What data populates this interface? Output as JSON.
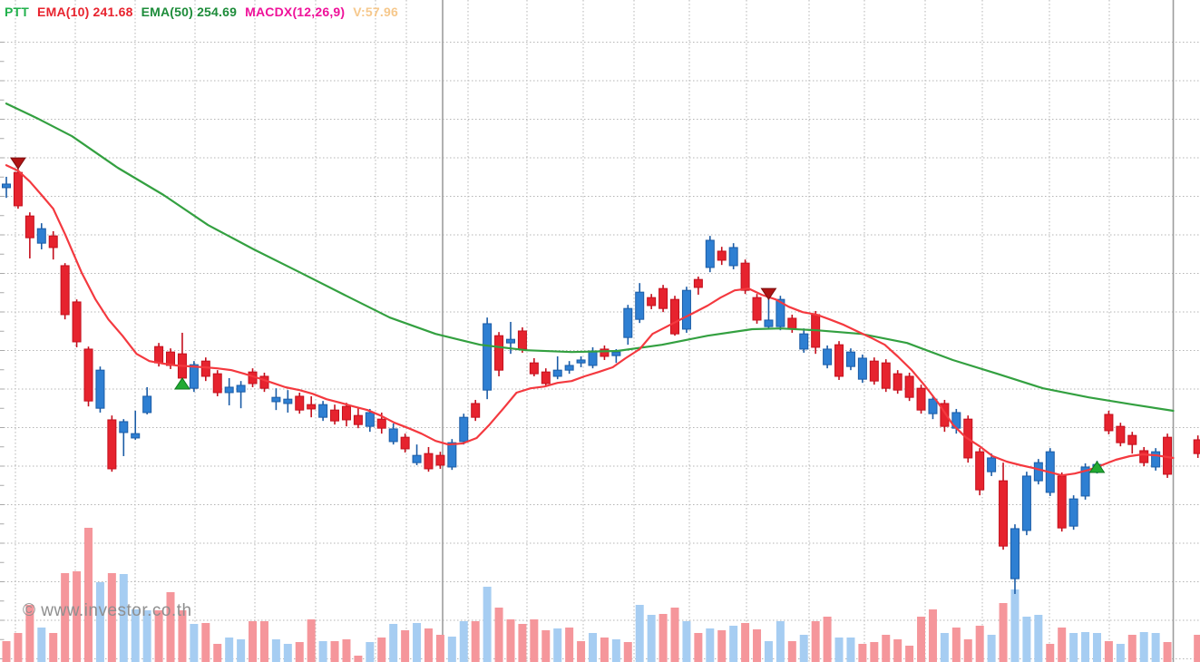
{
  "legend": {
    "items": [
      {
        "id": "symbol",
        "label": "PTT",
        "color": "#21b14c"
      },
      {
        "id": "ema10",
        "label": "EMA(10) 241.68",
        "color": "#e8232e"
      },
      {
        "id": "ema50",
        "label": "EMA(50) 254.69",
        "color": "#1d8c3a"
      },
      {
        "id": "macdx",
        "label": "MACDX(12,26,9)",
        "color": "#ef129a"
      },
      {
        "id": "volume",
        "label": "V:57.96",
        "color": "#f6c88c"
      }
    ]
  },
  "watermark": "© www.investor.co.th",
  "chart_data": {
    "type": "candlestick",
    "symbol": "PTT",
    "indicators": [
      {
        "name": "EMA(10)",
        "value": 241.68
      },
      {
        "name": "EMA(50)",
        "value": 254.69
      },
      {
        "name": "MACDX",
        "params": "12,26,9"
      },
      {
        "name": "V",
        "value": 57.96
      }
    ],
    "price_axis": {
      "top_estimate": 367.9,
      "bottom_estimate": 185.4,
      "units_per_grid": 10.6
    },
    "legend_note": "candles = [dir, open, high, low, close, volume_rel, vol_dir]; dir r=down b=up",
    "candles": [
      [
        "b",
        316.2,
        319.2,
        313.4,
        317.2,
        23,
        "r"
      ],
      [
        "r",
        320.4,
        321.4,
        310.4,
        311.2,
        32,
        "r"
      ],
      [
        "r",
        308.4,
        309.4,
        296.7,
        302.4,
        63,
        "r"
      ],
      [
        "b",
        300.9,
        306.4,
        299.2,
        304.9,
        38,
        "b"
      ],
      [
        "r",
        302.9,
        304.2,
        296.4,
        299.7,
        32,
        "r"
      ],
      [
        "r",
        294.7,
        295.4,
        279.9,
        281.2,
        98,
        "r"
      ],
      [
        "r",
        284.7,
        285.4,
        272.2,
        273.7,
        100,
        "r"
      ],
      [
        "r",
        271.7,
        272.4,
        255.9,
        257.4,
        148,
        "r"
      ],
      [
        "b",
        255.4,
        266.9,
        254.2,
        265.9,
        88,
        "b"
      ],
      [
        "r",
        252.2,
        253.4,
        237.9,
        238.7,
        98,
        "r"
      ],
      [
        "b",
        248.7,
        252.4,
        242.2,
        251.7,
        97,
        "b"
      ],
      [
        "b",
        247.2,
        254.7,
        246.7,
        248.4,
        58,
        "b"
      ],
      [
        "b",
        254.2,
        261.2,
        253.7,
        258.7,
        57,
        "b"
      ],
      [
        "r",
        272.4,
        273.4,
        266.9,
        267.9,
        57,
        "r"
      ],
      [
        "r",
        270.9,
        271.9,
        266.2,
        267.2,
        77,
        "r"
      ],
      [
        "r",
        270.4,
        276.2,
        262.9,
        263.7,
        57,
        "r"
      ],
      [
        "b",
        260.9,
        268.4,
        259.9,
        267.4,
        42,
        "b"
      ],
      [
        "r",
        268.4,
        269.4,
        262.9,
        264.2,
        43,
        "r"
      ],
      [
        "r",
        264.9,
        265.9,
        258.7,
        259.7,
        20,
        "r"
      ],
      [
        "b",
        259.7,
        263.7,
        256.2,
        261.2,
        27,
        "b"
      ],
      [
        "b",
        259.9,
        262.9,
        255.4,
        261.7,
        25,
        "b"
      ],
      [
        "r",
        265.4,
        266.4,
        261.2,
        262.2,
        45,
        "r"
      ],
      [
        "r",
        264.2,
        265.2,
        259.9,
        260.9,
        45,
        "r"
      ],
      [
        "b",
        257.2,
        260.9,
        254.9,
        258.4,
        25,
        "b"
      ],
      [
        "b",
        256.7,
        260.4,
        254.2,
        257.9,
        20,
        "b"
      ],
      [
        "r",
        258.7,
        259.7,
        253.9,
        254.9,
        22,
        "r"
      ],
      [
        "r",
        256.4,
        258.7,
        252.9,
        255.2,
        47,
        "r"
      ],
      [
        "b",
        252.9,
        257.4,
        251.9,
        256.4,
        23,
        "b"
      ],
      [
        "r",
        254.9,
        256.4,
        250.9,
        251.9,
        23,
        "r"
      ],
      [
        "r",
        255.9,
        256.9,
        250.4,
        252.2,
        25,
        "r"
      ],
      [
        "r",
        253.4,
        255.4,
        249.9,
        250.9,
        7,
        "r"
      ],
      [
        "b",
        250.4,
        255.2,
        248.9,
        254.2,
        22,
        "b"
      ],
      [
        "r",
        252.4,
        254.2,
        248.4,
        249.9,
        27,
        "r"
      ],
      [
        "b",
        246.2,
        251.2,
        245.4,
        249.7,
        42,
        "b"
      ],
      [
        "r",
        247.4,
        248.4,
        243.2,
        244.2,
        35,
        "r"
      ],
      [
        "b",
        240.4,
        245.4,
        239.7,
        242.4,
        43,
        "b"
      ],
      [
        "r",
        242.9,
        244.7,
        237.9,
        238.7,
        37,
        "r"
      ],
      [
        "r",
        242.4,
        243.4,
        238.7,
        239.7,
        30,
        "r"
      ],
      [
        "b",
        239.2,
        246.9,
        238.4,
        245.9,
        28,
        "b"
      ],
      [
        "b",
        246.2,
        253.9,
        245.4,
        252.9,
        45,
        "b"
      ],
      [
        "r",
        256.7,
        257.7,
        251.9,
        252.9,
        45,
        "r"
      ],
      [
        "b",
        260.4,
        280.4,
        257.9,
        278.7,
        83,
        "b"
      ],
      [
        "r",
        275.4,
        276.4,
        264.2,
        265.9,
        60,
        "r"
      ],
      [
        "b",
        273.4,
        279.2,
        270.4,
        274.4,
        47,
        "r"
      ],
      [
        "r",
        276.7,
        277.7,
        270.7,
        271.7,
        42,
        "r"
      ],
      [
        "r",
        267.9,
        269.2,
        264.2,
        264.9,
        47,
        "r"
      ],
      [
        "r",
        265.4,
        266.4,
        261.4,
        262.2,
        35,
        "r"
      ],
      [
        "b",
        264.2,
        269.7,
        263.4,
        265.9,
        37,
        "b"
      ],
      [
        "b",
        265.9,
        268.4,
        264.9,
        267.2,
        38,
        "r"
      ],
      [
        "b",
        267.9,
        269.7,
        266.7,
        268.7,
        23,
        "r"
      ],
      [
        "b",
        267.2,
        272.2,
        266.4,
        271.2,
        32,
        "b"
      ],
      [
        "r",
        271.7,
        272.7,
        268.7,
        269.7,
        27,
        "r"
      ],
      [
        "b",
        269.9,
        271.7,
        267.9,
        270.9,
        25,
        "b"
      ],
      [
        "b",
        274.9,
        283.9,
        272.9,
        282.9,
        22,
        "r"
      ],
      [
        "b",
        279.9,
        289.9,
        278.9,
        287.4,
        63,
        "b"
      ],
      [
        "r",
        285.9,
        286.9,
        282.7,
        283.7,
        52,
        "b"
      ],
      [
        "r",
        288.4,
        289.4,
        281.9,
        282.9,
        53,
        "r"
      ],
      [
        "r",
        285.4,
        286.4,
        275.4,
        275.9,
        60,
        "r"
      ],
      [
        "b",
        277.2,
        288.9,
        276.2,
        287.9,
        45,
        "b"
      ],
      [
        "r",
        290.9,
        291.7,
        286.7,
        288.7,
        32,
        "r"
      ],
      [
        "b",
        294.2,
        302.9,
        292.9,
        301.7,
        37,
        "b"
      ],
      [
        "r",
        298.7,
        299.9,
        294.9,
        296.2,
        35,
        "r"
      ],
      [
        "b",
        294.7,
        300.9,
        293.7,
        299.7,
        40,
        "b"
      ],
      [
        "r",
        295.4,
        296.4,
        286.9,
        287.9,
        43,
        "r"
      ],
      [
        "r",
        285.9,
        286.9,
        278.7,
        279.7,
        36,
        "r"
      ],
      [
        "b",
        277.9,
        286.7,
        277.2,
        279.7,
        23,
        "b"
      ],
      [
        "b",
        277.9,
        286.4,
        276.9,
        285.4,
        45,
        "b"
      ],
      [
        "r",
        280.2,
        281.2,
        276.2,
        277.2,
        23,
        "r"
      ],
      [
        "b",
        271.7,
        277.4,
        270.7,
        275.9,
        30,
        "b"
      ],
      [
        "r",
        281.2,
        282.2,
        270.4,
        272.2,
        45,
        "r"
      ],
      [
        "b",
        267.4,
        272.7,
        266.4,
        271.7,
        50,
        "r"
      ],
      [
        "r",
        272.9,
        273.9,
        263.2,
        264.2,
        27,
        "b"
      ],
      [
        "b",
        266.9,
        271.9,
        265.9,
        270.9,
        27,
        "b"
      ],
      [
        "b",
        263.4,
        270.2,
        262.4,
        269.2,
        20,
        "r"
      ],
      [
        "r",
        268.4,
        269.4,
        261.9,
        262.9,
        22,
        "r"
      ],
      [
        "r",
        267.9,
        268.9,
        259.9,
        260.9,
        30,
        "r"
      ],
      [
        "r",
        264.9,
        265.9,
        259.4,
        260.4,
        25,
        "r"
      ],
      [
        "r",
        264.2,
        265.2,
        257.4,
        258.4,
        18,
        "r"
      ],
      [
        "r",
        260.9,
        261.9,
        253.9,
        254.9,
        50,
        "r"
      ],
      [
        "b",
        253.9,
        258.9,
        252.4,
        257.9,
        58,
        "r"
      ],
      [
        "r",
        256.7,
        257.7,
        248.9,
        250.4,
        32,
        "b"
      ],
      [
        "b",
        249.9,
        255.2,
        248.4,
        254.2,
        38,
        "r"
      ],
      [
        "r",
        252.4,
        253.4,
        240.4,
        241.7,
        25,
        "r"
      ],
      [
        "r",
        243.4,
        244.4,
        231.4,
        232.9,
        40,
        "r"
      ],
      [
        "b",
        237.9,
        242.9,
        236.7,
        241.7,
        30,
        "b"
      ],
      [
        "r",
        235.4,
        240.4,
        216.4,
        217.4,
        65,
        "r"
      ],
      [
        "b",
        208.4,
        223.4,
        204.2,
        222.2,
        80,
        "b"
      ],
      [
        "b",
        221.7,
        237.9,
        220.4,
        236.7,
        50,
        "b"
      ],
      [
        "b",
        235.4,
        241.4,
        234.4,
        240.4,
        52,
        "b"
      ],
      [
        "b",
        232.2,
        244.4,
        231.2,
        243.4,
        20,
        "r"
      ],
      [
        "r",
        236.7,
        237.7,
        221.4,
        222.4,
        38,
        "r"
      ],
      [
        "b",
        222.9,
        231.4,
        221.9,
        230.4,
        32,
        "b"
      ],
      [
        "b",
        231.2,
        240.2,
        230.2,
        239.2,
        33,
        "b"
      ],
      [
        "b",
        238.4,
        240.9,
        237.4,
        239.9,
        32,
        "b"
      ],
      [
        "r",
        253.7,
        254.7,
        248.2,
        249.2,
        23,
        "r"
      ],
      [
        "r",
        250.4,
        251.4,
        244.9,
        245.9,
        20,
        "b"
      ],
      [
        "r",
        247.9,
        248.9,
        242.9,
        245.4,
        30,
        "r"
      ],
      [
        "r",
        243.7,
        244.7,
        239.4,
        240.4,
        33,
        "b"
      ],
      [
        "b",
        239.2,
        244.4,
        238.2,
        243.4,
        32,
        "b"
      ],
      [
        "r",
        247.4,
        248.4,
        236.2,
        237.2,
        22,
        "r"
      ]
    ],
    "edge_candle": {
      "index": 101.6,
      "values": [
        "r",
        246.7,
        247.9,
        241.7,
        242.9,
        30,
        "r"
      ]
    },
    "ema10": [
      [
        0,
        322.4
      ],
      [
        1,
        320.9
      ],
      [
        2,
        317.9
      ],
      [
        3,
        314.2
      ],
      [
        4,
        310.4
      ],
      [
        5,
        303.4
      ],
      [
        6.4,
        292.9
      ],
      [
        7.6,
        285.4
      ],
      [
        8.7,
        279.9
      ],
      [
        9.9,
        275.4
      ],
      [
        11.1,
        270.4
      ],
      [
        12.2,
        268.4
      ],
      [
        13.4,
        267.7
      ],
      [
        14.5,
        267.2
      ],
      [
        16.9,
        266.7
      ],
      [
        18,
        266.4
      ],
      [
        19.2,
        265.9
      ],
      [
        20.3,
        264.9
      ],
      [
        21.5,
        263.7
      ],
      [
        22.7,
        262.4
      ],
      [
        23.8,
        261.2
      ],
      [
        25,
        260.4
      ],
      [
        26.1,
        259.4
      ],
      [
        27.3,
        257.9
      ],
      [
        28.5,
        256.9
      ],
      [
        29.6,
        255.9
      ],
      [
        30.8,
        254.9
      ],
      [
        31.9,
        253.4
      ],
      [
        33.1,
        251.4
      ],
      [
        34.3,
        249.9
      ],
      [
        35.4,
        248.4
      ],
      [
        36.6,
        246.4
      ],
      [
        37.7,
        245.4
      ],
      [
        38.9,
        245.7
      ],
      [
        40.1,
        247.2
      ],
      [
        41.2,
        250.9
      ],
      [
        42.4,
        255.4
      ],
      [
        43.5,
        259.7
      ],
      [
        44.7,
        260.9
      ],
      [
        45.9,
        261.4
      ],
      [
        47,
        262.4
      ],
      [
        48.2,
        262.9
      ],
      [
        49.3,
        264.2
      ],
      [
        50.5,
        265.4
      ],
      [
        51.7,
        266.7
      ],
      [
        52.8,
        269.2
      ],
      [
        54,
        271.7
      ],
      [
        55.1,
        275.9
      ],
      [
        56.3,
        277.9
      ],
      [
        57.5,
        279.9
      ],
      [
        58.6,
        281.7
      ],
      [
        59.8,
        283.7
      ],
      [
        60.9,
        285.9
      ],
      [
        62.1,
        287.9
      ],
      [
        63.3,
        288.4
      ],
      [
        64.4,
        286.7
      ],
      [
        65.6,
        285.4
      ],
      [
        66.7,
        283.4
      ],
      [
        67.9,
        281.9
      ],
      [
        69.1,
        281.2
      ],
      [
        70.2,
        279.9
      ],
      [
        71.4,
        278.4
      ],
      [
        72.5,
        276.7
      ],
      [
        73.7,
        274.9
      ],
      [
        74.9,
        272.9
      ],
      [
        76,
        269.7
      ],
      [
        77.2,
        265.9
      ],
      [
        78.3,
        261.7
      ],
      [
        79.5,
        256.7
      ],
      [
        80.7,
        250.9
      ],
      [
        81.8,
        247.4
      ],
      [
        83,
        244.9
      ],
      [
        84.1,
        242.2
      ],
      [
        85.3,
        240.7
      ],
      [
        86.5,
        239.7
      ],
      [
        87.6,
        238.9
      ],
      [
        88.8,
        237.9
      ],
      [
        90,
        236.9
      ],
      [
        91.1,
        237.4
      ],
      [
        92.3,
        238.4
      ],
      [
        93.4,
        239.7
      ],
      [
        94.6,
        241.2
      ],
      [
        95.8,
        242.2
      ],
      [
        96.9,
        242.7
      ],
      [
        98.1,
        242.4
      ],
      [
        99.5,
        241.7
      ]
    ],
    "ema50": [
      [
        0,
        339.4
      ],
      [
        2.6,
        335.4
      ],
      [
        5.6,
        330.4
      ],
      [
        9.5,
        321.7
      ],
      [
        13.4,
        314.2
      ],
      [
        17.2,
        305.9
      ],
      [
        21.1,
        299.2
      ],
      [
        25,
        292.9
      ],
      [
        28.8,
        286.7
      ],
      [
        32.7,
        280.4
      ],
      [
        36.6,
        275.9
      ],
      [
        40.4,
        272.9
      ],
      [
        44.3,
        271.4
      ],
      [
        48.2,
        270.9
      ],
      [
        52.1,
        271.2
      ],
      [
        55.9,
        272.9
      ],
      [
        59.8,
        275.4
      ],
      [
        63.6,
        277.2
      ],
      [
        66,
        277.4
      ],
      [
        69.1,
        276.9
      ],
      [
        72.9,
        275.9
      ],
      [
        76.8,
        273.4
      ],
      [
        80.7,
        268.7
      ],
      [
        84.5,
        264.9
      ],
      [
        88.4,
        260.9
      ],
      [
        92.3,
        258.4
      ],
      [
        96.1,
        256.4
      ],
      [
        99.5,
        254.7
      ]
    ],
    "markers": [
      {
        "index": 1,
        "type": "sell",
        "price": 322.9
      },
      {
        "index": 15,
        "type": "buy",
        "price": 262.2
      },
      {
        "index": 65,
        "type": "sell",
        "price": 286.9
      },
      {
        "index": 93,
        "type": "buy",
        "price": 239.2
      }
    ],
    "separators_at_index": [
      37.2,
      99.5
    ],
    "grid": {
      "h_start": 46.5,
      "h_step": 42.5,
      "h_count": 17,
      "v_lines": [
        17,
        83,
        149,
        215,
        281,
        348,
        414,
        448,
        516,
        581,
        643,
        699,
        760,
        823,
        892,
        953,
        1020,
        1083,
        1157,
        1223
      ],
      "tick_step": 21.25
    },
    "colors": {
      "up": "#2e7fd2",
      "up_border": "#1b5ca6",
      "down": "#e6232e",
      "down_border": "#c40f1c",
      "vol_up": "#a6cdf2",
      "vol_down": "#f5969b",
      "ema10": "#f4393f",
      "ema50": "#33a040",
      "grid": "#b5b5b5",
      "separator": "#9c9c9c",
      "buy_marker": "#22aa33",
      "buy_marker_border": "#0d7a1e",
      "sell_marker": "#b01414",
      "sell_marker_border": "#7a0c0c"
    }
  }
}
